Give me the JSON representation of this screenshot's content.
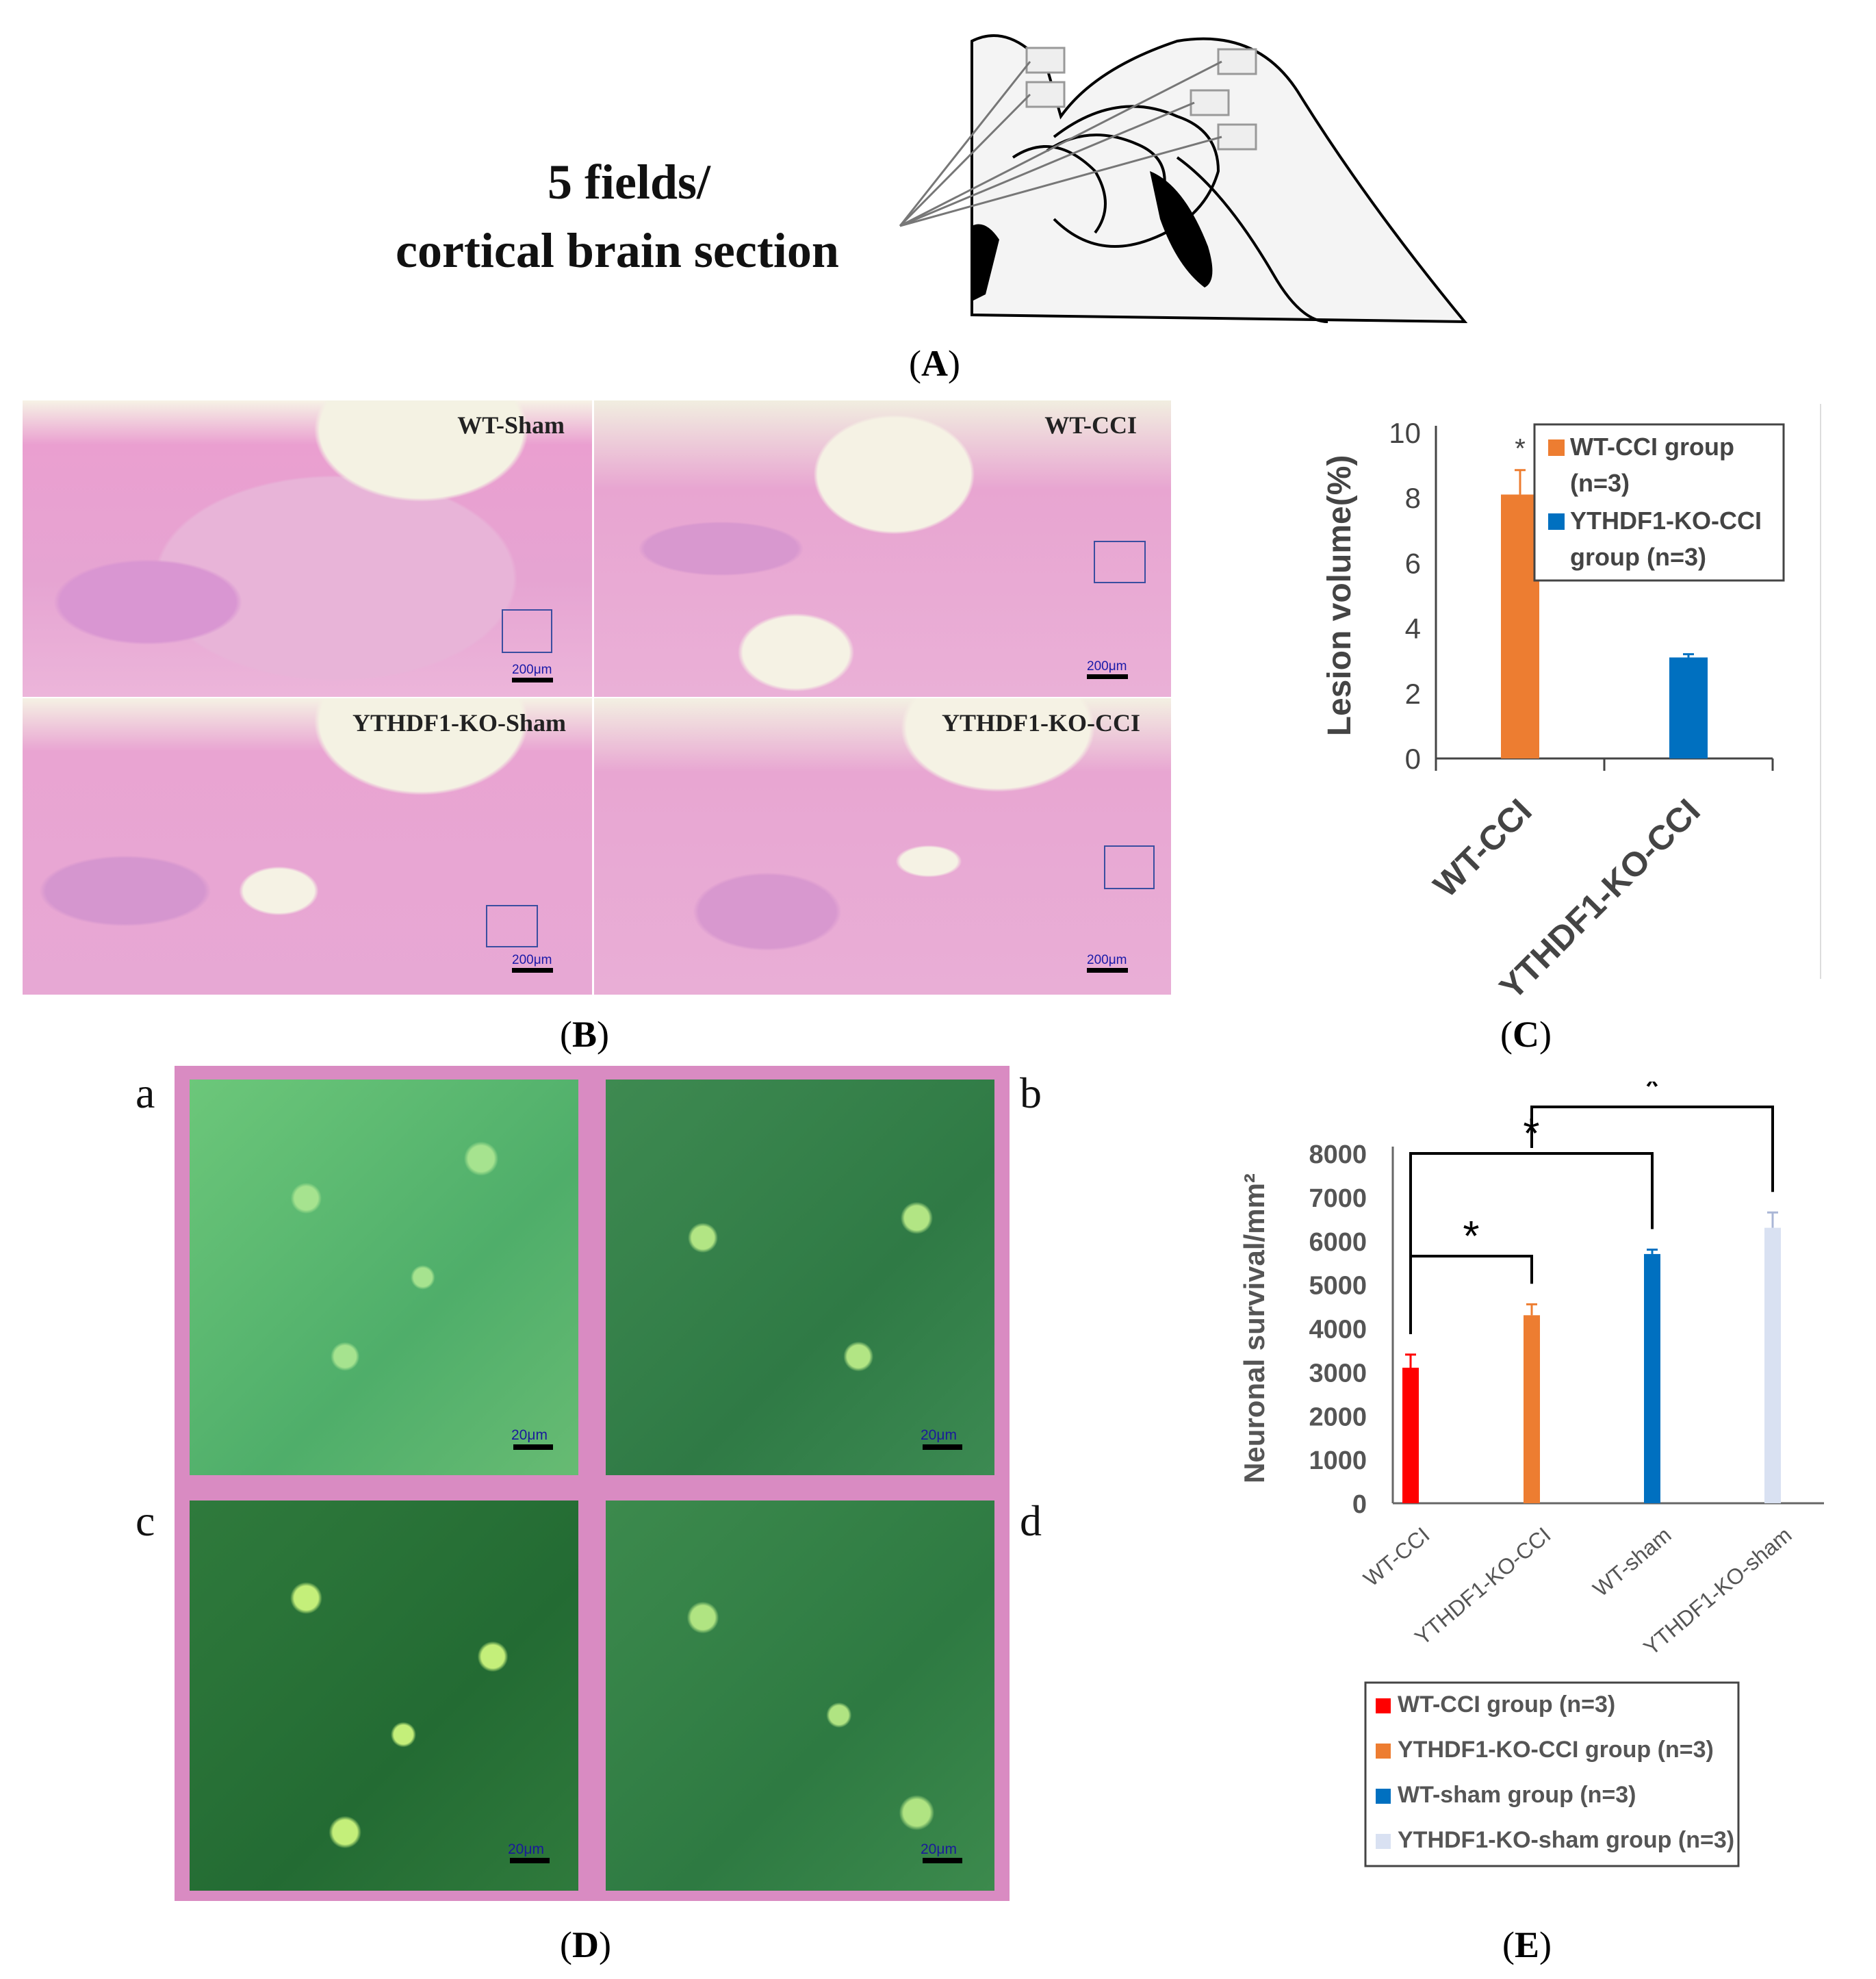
{
  "panel_a": {
    "caption_letter": "A",
    "label_line1": "5 fields/",
    "label_line2": "cortical brain section"
  },
  "panel_b": {
    "caption_letter": "B",
    "images": [
      {
        "label": "WT-Sham",
        "scale": "200μm"
      },
      {
        "label": "WT-CCI",
        "scale": "200μm"
      },
      {
        "label": "YTHDF1-KO-Sham",
        "scale": "200μm"
      },
      {
        "label": "YTHDF1-KO-CCI",
        "scale": "200μm"
      }
    ]
  },
  "panel_c": {
    "caption_letter": "C",
    "significance": "*"
  },
  "panel_d": {
    "caption_letter": "D",
    "tiles": [
      {
        "letter": "a",
        "scale": "20μm"
      },
      {
        "letter": "b",
        "scale": "20μm"
      },
      {
        "letter": "c",
        "scale": "20μm"
      },
      {
        "letter": "d",
        "scale": "20μm"
      }
    ]
  },
  "panel_e": {
    "caption_letter": "E",
    "significance": [
      "*",
      "*",
      "*"
    ]
  },
  "colors": {
    "wt_cci_c": "#ED7D31",
    "ko_cci_c": "#0070C0",
    "red": "#FF0000",
    "orange": "#ED7D31",
    "blue": "#0070C0",
    "lavender": "#D9E1F2",
    "he_pink": "#e9a9d3",
    "green_tissue": "#3f9c57"
  },
  "chart_data": [
    {
      "type": "bar",
      "categories": [
        "WT-CCI",
        "YTHDF1-KO-CCI"
      ],
      "series": [
        {
          "name": "WT-CCI group (n=3)",
          "values": [
            8.1,
            null
          ],
          "error": [
            0.75,
            null
          ]
        },
        {
          "name": "YTHDF1-KO-CCI group (n=3)",
          "values": [
            null,
            3.1
          ],
          "error": [
            null,
            0.1
          ]
        }
      ],
      "legend_entries": [
        "WT-CCI group",
        "(n=3)",
        "YTHDF1-KO-CCI",
        "group (n=3)"
      ],
      "ylabel": "Lesion volume(%)",
      "ylim": [
        0,
        10
      ],
      "yticks": [
        0,
        2,
        4,
        6,
        8,
        10
      ],
      "legend_placement": "top-right",
      "annotations": [
        "*"
      ]
    },
    {
      "type": "bar",
      "categories": [
        "WT-CCI",
        "YTHDF1-KO-CCI",
        "WT-sham",
        "YTHDF1-KO-sham"
      ],
      "values": [
        3100,
        4300,
        5700,
        6300
      ],
      "error": [
        300,
        250,
        100,
        350
      ],
      "series_names": [
        "WT-CCI group (n=3)",
        "YTHDF1-KO-CCI group (n=3)",
        "WT-sham group (n=3)",
        "YTHDF1-KO-sham group (n=3)"
      ],
      "ylabel": "Neuronal survival/mm²",
      "ylim": [
        0,
        8000
      ],
      "yticks": [
        0,
        1000,
        2000,
        3000,
        4000,
        5000,
        6000,
        7000,
        8000
      ],
      "legend_placement": "bottom",
      "annotations": [
        "*",
        "*",
        "*"
      ]
    }
  ]
}
